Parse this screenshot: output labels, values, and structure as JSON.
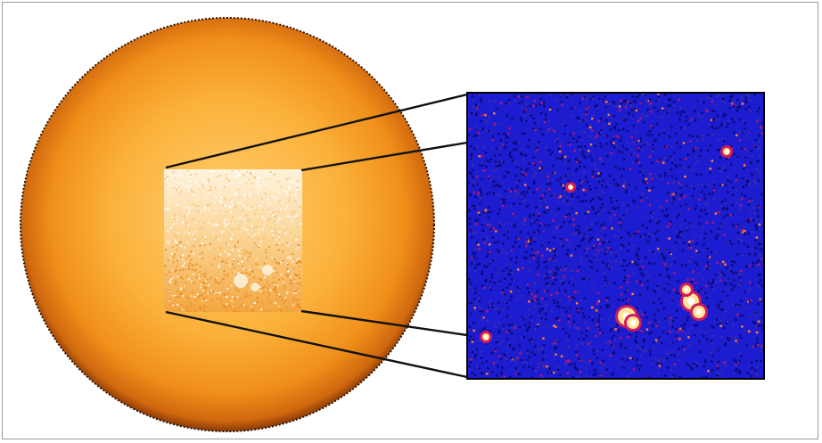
{
  "figure": {
    "description_visible_text": "",
    "colors": {
      "sun_core": "#ffd27a",
      "sun_mid": "#f5a623",
      "sun_limb": "#c8620f",
      "inset_bg": "#1818c8",
      "inset_hot": "#ffe08a",
      "inset_warm": "#c2185b",
      "connector": "#111111",
      "frame": "#9a9a9a"
    },
    "icons": {
      "sun_disk": "sun-disk-image",
      "zoom_region": "zoom-region-image",
      "zoom_inset": "magnetogram-inset-image"
    }
  }
}
